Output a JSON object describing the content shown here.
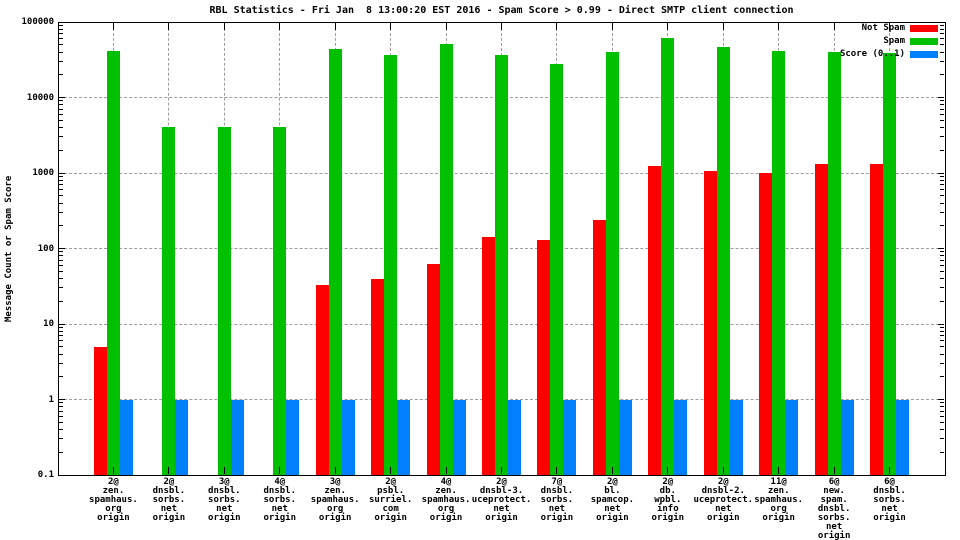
{
  "chart_data": {
    "type": "bar",
    "title": "RBL Statistics - Fri Jan  8 13:00:20 EST 2016 - Spam Score > 0.99 - Direct SMTP client connection",
    "ylabel": "Message Count or Spam Score",
    "y_scale": "log",
    "ylim": [
      0.1,
      100000
    ],
    "y_tick_labels": [
      "100000",
      "10000",
      "1000",
      "100",
      "10",
      "1",
      "0.1"
    ],
    "y_tick_values": [
      100000,
      10000,
      1000,
      100,
      10,
      1,
      0.1
    ],
    "grid": "dashed gray: horizontal at each decade, vertical at each category",
    "legend_position": "top-right inside plot",
    "categories": [
      [
        "2@",
        "zen.",
        "spamhaus.",
        "org",
        "origin"
      ],
      [
        "2@",
        "dnsbl.",
        "sorbs.",
        "net",
        "origin"
      ],
      [
        "3@",
        "dnsbl.",
        "sorbs.",
        "net",
        "origin"
      ],
      [
        "4@",
        "dnsbl.",
        "sorbs.",
        "net",
        "origin"
      ],
      [
        "3@",
        "zen.",
        "spamhaus.",
        "org",
        "origin"
      ],
      [
        "2@",
        "psbl.",
        "surriel.",
        "com",
        "origin"
      ],
      [
        "4@",
        "zen.",
        "spamhaus.",
        "org",
        "origin"
      ],
      [
        "2@",
        "dnsbl-3.",
        "uceprotect.",
        "net",
        "origin"
      ],
      [
        "7@",
        "dnsbl.",
        "sorbs.",
        "net",
        "origin"
      ],
      [
        "2@",
        "bl.",
        "spamcop.",
        "net",
        "origin"
      ],
      [
        "2@",
        "db.",
        "wpbl.",
        "info",
        "origin"
      ],
      [
        "2@",
        "dnsbl-2.",
        "uceprotect.",
        "net",
        "origin"
      ],
      [
        "11@",
        "zen.",
        "spamhaus.",
        "org",
        "origin"
      ],
      [
        "6@",
        "new.",
        "spam.",
        "dnsbl.",
        "sorbs.",
        "net",
        "origin"
      ],
      [
        "6@",
        "dnsbl.",
        "sorbs.",
        "net",
        "origin"
      ]
    ],
    "series": [
      {
        "name": "Not Spam",
        "color": "#ff0000",
        "values": [
          5,
          null,
          null,
          null,
          33,
          40,
          62,
          140,
          128,
          240,
          1250,
          1050,
          1000,
          1330,
          1330
        ]
      },
      {
        "name": "Spam",
        "color": "#00c000",
        "values": [
          41000,
          4100,
          4100,
          4100,
          44000,
          37000,
          51000,
          36000,
          28000,
          40000,
          61000,
          46000,
          41000,
          40000,
          39000
        ]
      },
      {
        "name": "Score (0..1)",
        "color": "#0080ff",
        "values": [
          1,
          1,
          1,
          1,
          1,
          1,
          1,
          1,
          1,
          1,
          1,
          1,
          1,
          1,
          1
        ]
      }
    ],
    "colors": {
      "not_spam": "#ff0000",
      "spam": "#00c000",
      "score": "#0080ff",
      "grid": "#9e9e9e",
      "axis": "#000000",
      "background": "#ffffff"
    }
  }
}
